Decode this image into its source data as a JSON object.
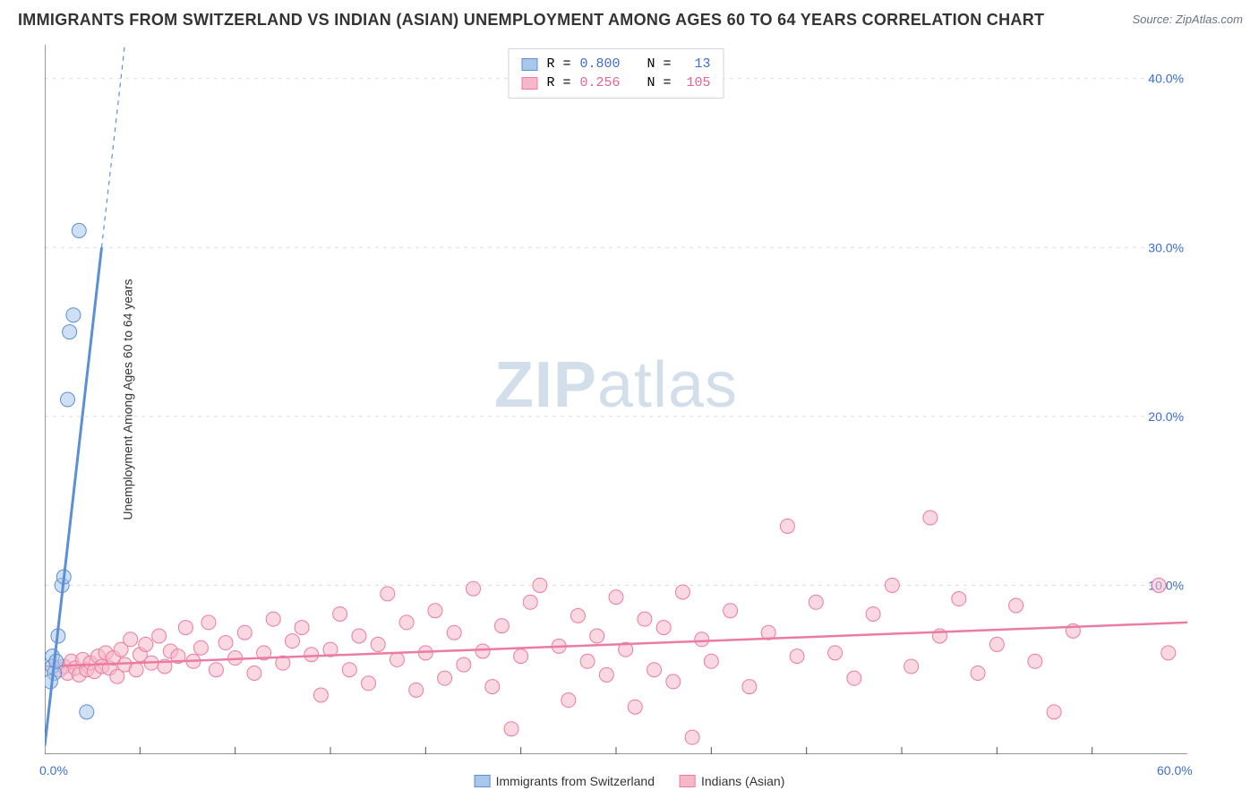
{
  "title": "IMMIGRANTS FROM SWITZERLAND VS INDIAN (ASIAN) UNEMPLOYMENT AMONG AGES 60 TO 64 YEARS CORRELATION CHART",
  "source_prefix": "Source: ",
  "source_name": "ZipAtlas.com",
  "ylabel": "Unemployment Among Ages 60 to 64 years",
  "watermark_zip": "ZIP",
  "watermark_atlas": "atlas",
  "colors": {
    "blue_fill": "#a9c7eb",
    "blue_stroke": "#5b8fd6",
    "blue_text": "#3b6fd0",
    "pink_fill": "#f6b8c9",
    "pink_stroke": "#ec7ba1",
    "pink_text": "#e86290",
    "grid": "#d9dde1",
    "axis": "#555555",
    "tick_text_x": "#3b6fd0",
    "tick_text_y": "#3b6fd0",
    "title_color": "#333333",
    "watermark": "#9fb7d4"
  },
  "chart": {
    "type": "scatter",
    "xlim": [
      0,
      60
    ],
    "ylim": [
      0,
      42
    ],
    "y_ticks": [
      10,
      20,
      30,
      40
    ],
    "y_tick_labels": [
      "10.0%",
      "20.0%",
      "30.0%",
      "40.0%"
    ],
    "x_tick_left": "0.0%",
    "x_tick_right": "60.0%",
    "x_minor_ticks": [
      5,
      10,
      15,
      20,
      25,
      30,
      35,
      40,
      45,
      50,
      55
    ],
    "marker_radius": 8,
    "marker_opacity": 0.55,
    "line_width_blue": 3,
    "line_width_pink": 2.5,
    "grid_dash": "4 5"
  },
  "series_blue": {
    "label": "Immigrants from Switzerland",
    "R": "0.800",
    "N": "13",
    "trend": {
      "x1": 0,
      "y1": 0.5,
      "x2": 4.2,
      "y2": 42
    },
    "trend_dash_from_y": 30,
    "points": [
      [
        0.4,
        5.8
      ],
      [
        0.4,
        5.2
      ],
      [
        0.5,
        4.8
      ],
      [
        0.6,
        5.5
      ],
      [
        0.7,
        7.0
      ],
      [
        0.9,
        10.0
      ],
      [
        1.0,
        10.5
      ],
      [
        1.2,
        21.0
      ],
      [
        1.3,
        25.0
      ],
      [
        1.5,
        26.0
      ],
      [
        1.8,
        31.0
      ],
      [
        2.2,
        2.5
      ],
      [
        0.3,
        4.3
      ]
    ]
  },
  "series_pink": {
    "label": "Indians (Asian)",
    "R": "0.256",
    "N": "105",
    "trend": {
      "x1": 0,
      "y1": 5.2,
      "x2": 60,
      "y2": 7.8
    },
    "points": [
      [
        0.8,
        5.0
      ],
      [
        1.0,
        5.2
      ],
      [
        1.2,
        4.8
      ],
      [
        1.4,
        5.5
      ],
      [
        1.6,
        5.1
      ],
      [
        1.8,
        4.7
      ],
      [
        2.0,
        5.6
      ],
      [
        2.2,
        5.0
      ],
      [
        2.4,
        5.4
      ],
      [
        2.6,
        4.9
      ],
      [
        2.8,
        5.8
      ],
      [
        3.0,
        5.2
      ],
      [
        3.2,
        6.0
      ],
      [
        3.4,
        5.1
      ],
      [
        3.6,
        5.7
      ],
      [
        3.8,
        4.6
      ],
      [
        4.0,
        6.2
      ],
      [
        4.2,
        5.3
      ],
      [
        4.5,
        6.8
      ],
      [
        4.8,
        5.0
      ],
      [
        5.0,
        5.9
      ],
      [
        5.3,
        6.5
      ],
      [
        5.6,
        5.4
      ],
      [
        6.0,
        7.0
      ],
      [
        6.3,
        5.2
      ],
      [
        6.6,
        6.1
      ],
      [
        7.0,
        5.8
      ],
      [
        7.4,
        7.5
      ],
      [
        7.8,
        5.5
      ],
      [
        8.2,
        6.3
      ],
      [
        8.6,
        7.8
      ],
      [
        9.0,
        5.0
      ],
      [
        9.5,
        6.6
      ],
      [
        10.0,
        5.7
      ],
      [
        10.5,
        7.2
      ],
      [
        11.0,
        4.8
      ],
      [
        11.5,
        6.0
      ],
      [
        12.0,
        8.0
      ],
      [
        12.5,
        5.4
      ],
      [
        13.0,
        6.7
      ],
      [
        13.5,
        7.5
      ],
      [
        14.0,
        5.9
      ],
      [
        14.5,
        3.5
      ],
      [
        15.0,
        6.2
      ],
      [
        15.5,
        8.3
      ],
      [
        16.0,
        5.0
      ],
      [
        16.5,
        7.0
      ],
      [
        17.0,
        4.2
      ],
      [
        17.5,
        6.5
      ],
      [
        18.0,
        9.5
      ],
      [
        18.5,
        5.6
      ],
      [
        19.0,
        7.8
      ],
      [
        19.5,
        3.8
      ],
      [
        20.0,
        6.0
      ],
      [
        20.5,
        8.5
      ],
      [
        21.0,
        4.5
      ],
      [
        21.5,
        7.2
      ],
      [
        22.0,
        5.3
      ],
      [
        22.5,
        9.8
      ],
      [
        23.0,
        6.1
      ],
      [
        23.5,
        4.0
      ],
      [
        24.0,
        7.6
      ],
      [
        24.5,
        1.5
      ],
      [
        25.0,
        5.8
      ],
      [
        25.5,
        9.0
      ],
      [
        26.0,
        10.0
      ],
      [
        27.0,
        6.4
      ],
      [
        27.5,
        3.2
      ],
      [
        28.0,
        8.2
      ],
      [
        28.5,
        5.5
      ],
      [
        29.0,
        7.0
      ],
      [
        29.5,
        4.7
      ],
      [
        30.0,
        9.3
      ],
      [
        30.5,
        6.2
      ],
      [
        31.0,
        2.8
      ],
      [
        31.5,
        8.0
      ],
      [
        32.0,
        5.0
      ],
      [
        32.5,
        7.5
      ],
      [
        33.0,
        4.3
      ],
      [
        33.5,
        9.6
      ],
      [
        34.0,
        1.0
      ],
      [
        34.5,
        6.8
      ],
      [
        35.0,
        5.5
      ],
      [
        36.0,
        8.5
      ],
      [
        37.0,
        4.0
      ],
      [
        38.0,
        7.2
      ],
      [
        39.0,
        13.5
      ],
      [
        39.5,
        5.8
      ],
      [
        40.5,
        9.0
      ],
      [
        41.5,
        6.0
      ],
      [
        42.5,
        4.5
      ],
      [
        43.5,
        8.3
      ],
      [
        44.5,
        10.0
      ],
      [
        45.5,
        5.2
      ],
      [
        46.5,
        14.0
      ],
      [
        47.0,
        7.0
      ],
      [
        48.0,
        9.2
      ],
      [
        49.0,
        4.8
      ],
      [
        50.0,
        6.5
      ],
      [
        51.0,
        8.8
      ],
      [
        52.0,
        5.5
      ],
      [
        53.0,
        2.5
      ],
      [
        54.0,
        7.3
      ],
      [
        58.5,
        10.0
      ],
      [
        59.0,
        6.0
      ]
    ]
  },
  "legend_top": {
    "r_label": "R =",
    "n_label": "N ="
  }
}
